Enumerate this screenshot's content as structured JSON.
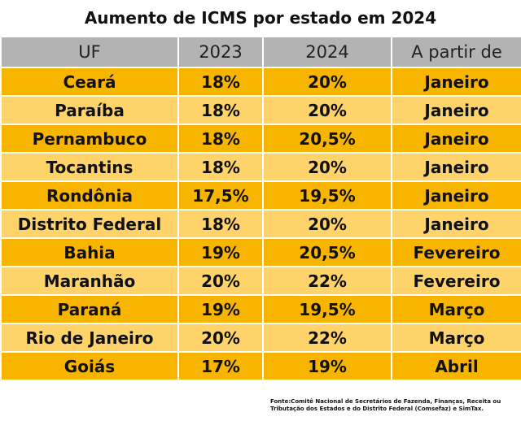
{
  "colors": {
    "header_bg": "#b3b3b3",
    "row_dark": "#f7b500",
    "row_light": "#fdd36a",
    "border": "#ffffff"
  },
  "chart_data": {
    "type": "table",
    "title": "Aumento de ICMS por estado em 2024",
    "columns": [
      "UF",
      "2023",
      "2024",
      "A partir de"
    ],
    "rows": [
      [
        "Ceará",
        "18%",
        "20%",
        "Janeiro"
      ],
      [
        "Paraíba",
        "18%",
        "20%",
        "Janeiro"
      ],
      [
        "Pernambuco",
        "18%",
        "20,5%",
        "Janeiro"
      ],
      [
        "Tocantins",
        "18%",
        "20%",
        "Janeiro"
      ],
      [
        "Rondônia",
        "17,5%",
        "19,5%",
        "Janeiro"
      ],
      [
        "Distrito Federal",
        "18%",
        "20%",
        "Janeiro"
      ],
      [
        "Bahia",
        "19%",
        "20,5%",
        "Fevereiro"
      ],
      [
        "Maranhão",
        "20%",
        "22%",
        "Fevereiro"
      ],
      [
        "Paraná",
        "19%",
        "19,5%",
        "Março"
      ],
      [
        "Rio de Janeiro",
        "20%",
        "22%",
        "Março"
      ],
      [
        "Goiás",
        "17%",
        "19%",
        "Abril"
      ]
    ],
    "source": "Fonte:Comitê Nacional de Secretários de Fazenda, Finanças, Receita ou Tributação dos Estados e do Distrito Federal (Comsefaz) e SimTax."
  }
}
